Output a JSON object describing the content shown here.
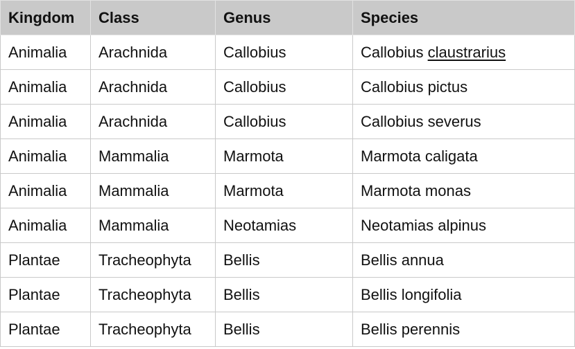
{
  "table": {
    "headers": [
      "Kingdom",
      "Class",
      "Genus",
      "Species"
    ],
    "rows": [
      {
        "kingdom": "Animalia",
        "class": "Arachnida",
        "genus": "Callobius",
        "species_prefix": "Callobius",
        "species_epithet": "claustrarius",
        "epithet_underlined": true
      },
      {
        "kingdom": "Animalia",
        "class": "Arachnida",
        "genus": "Callobius",
        "species_prefix": "Callobius",
        "species_epithet": "pictus",
        "epithet_underlined": false
      },
      {
        "kingdom": "Animalia",
        "class": "Arachnida",
        "genus": "Callobius",
        "species_prefix": "Callobius",
        "species_epithet": "severus",
        "epithet_underlined": false
      },
      {
        "kingdom": "Animalia",
        "class": "Mammalia",
        "genus": "Marmota",
        "species_prefix": "Marmota",
        "species_epithet": "caligata",
        "epithet_underlined": false
      },
      {
        "kingdom": "Animalia",
        "class": "Mammalia",
        "genus": "Marmota",
        "species_prefix": "Marmota",
        "species_epithet": "monas",
        "epithet_underlined": false
      },
      {
        "kingdom": "Animalia",
        "class": "Mammalia",
        "genus": "Neotamias",
        "species_prefix": "Neotamias",
        "species_epithet": "alpinus",
        "epithet_underlined": false
      },
      {
        "kingdom": "Plantae",
        "class": "Tracheophyta",
        "genus": "Bellis",
        "species_prefix": "Bellis",
        "species_epithet": "annua",
        "epithet_underlined": false
      },
      {
        "kingdom": "Plantae",
        "class": "Tracheophyta",
        "genus": "Bellis",
        "species_prefix": "Bellis",
        "species_epithet": "longifolia",
        "epithet_underlined": false
      },
      {
        "kingdom": "Plantae",
        "class": "Tracheophyta",
        "genus": "Bellis",
        "species_prefix": "Bellis",
        "species_epithet": "perennis",
        "epithet_underlined": false
      }
    ]
  },
  "colors": {
    "header_background": "#c9c9c9",
    "grid_line": "#c9c9c9",
    "text": "#111111",
    "cell_background": "#ffffff"
  }
}
